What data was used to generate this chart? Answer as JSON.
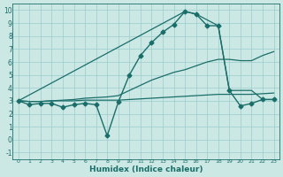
{
  "title": "",
  "xlabel": "Humidex (Indice chaleur)",
  "background_color": "#cce8e4",
  "grid_color": "#99cccc",
  "line_color": "#1a6e6a",
  "xlim": [
    -0.5,
    23.5
  ],
  "ylim": [
    -1.5,
    10.5
  ],
  "xticks": [
    0,
    1,
    2,
    3,
    4,
    5,
    6,
    7,
    8,
    9,
    10,
    11,
    12,
    13,
    14,
    15,
    16,
    17,
    18,
    19,
    20,
    21,
    22,
    23
  ],
  "yticks": [
    -1,
    0,
    1,
    2,
    3,
    4,
    5,
    6,
    7,
    8,
    9,
    10
  ],
  "series": [
    {
      "x": [
        0,
        1,
        2,
        3,
        4,
        5,
        6,
        7,
        8,
        9,
        10,
        11,
        12,
        13,
        14,
        15,
        16,
        17,
        18,
        19,
        20,
        21,
        22,
        23
      ],
      "y": [
        3.0,
        2.7,
        2.8,
        2.8,
        2.5,
        2.7,
        2.8,
        2.7,
        0.3,
        2.9,
        5.0,
        6.5,
        7.5,
        8.3,
        8.9,
        9.9,
        9.7,
        8.8,
        8.8,
        3.8,
        2.6,
        2.8,
        3.1,
        3.1
      ],
      "marker": "D",
      "markersize": 2.5,
      "linewidth": 1.0
    },
    {
      "x": [
        0,
        1,
        2,
        3,
        4,
        5,
        6,
        7,
        8,
        9,
        10,
        11,
        12,
        13,
        14,
        15,
        16,
        17,
        18,
        19,
        20,
        21,
        22,
        23
      ],
      "y": [
        3.0,
        2.95,
        2.95,
        3.0,
        3.0,
        3.0,
        3.05,
        3.05,
        3.05,
        3.05,
        3.1,
        3.15,
        3.2,
        3.25,
        3.3,
        3.35,
        3.4,
        3.45,
        3.5,
        3.5,
        3.5,
        3.5,
        3.55,
        3.6
      ],
      "marker": null,
      "markersize": 0,
      "linewidth": 0.9
    },
    {
      "x": [
        0,
        1,
        2,
        3,
        4,
        5,
        6,
        7,
        8,
        9,
        10,
        11,
        12,
        13,
        14,
        15,
        16,
        17,
        18,
        19,
        20,
        21,
        22,
        23
      ],
      "y": [
        3.0,
        2.95,
        2.95,
        3.0,
        3.05,
        3.1,
        3.2,
        3.25,
        3.3,
        3.4,
        3.8,
        4.2,
        4.6,
        4.9,
        5.2,
        5.4,
        5.7,
        6.0,
        6.2,
        6.2,
        6.1,
        6.1,
        6.5,
        6.8
      ],
      "marker": null,
      "markersize": 0,
      "linewidth": 0.9
    },
    {
      "x": [
        0,
        15,
        16,
        18,
        19,
        20,
        21,
        22,
        23
      ],
      "y": [
        3.0,
        9.9,
        9.7,
        8.8,
        3.8,
        3.8,
        3.8,
        3.1,
        3.1
      ],
      "marker": null,
      "markersize": 0,
      "linewidth": 0.9
    }
  ]
}
